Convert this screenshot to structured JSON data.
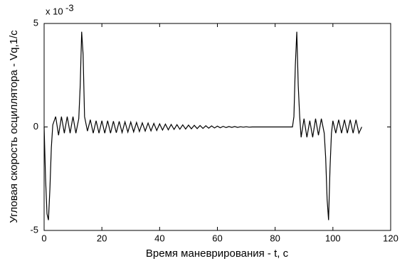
{
  "chart_data": {
    "type": "line",
    "ylabel": "Угловая скорость осциллятора - Vq,1/с",
    "xlabel": "Время маневрирования - t, с",
    "y_multiplier": "x 10",
    "y_exponent": "-3",
    "xlim": [
      0,
      120
    ],
    "xticks": [
      0,
      20,
      40,
      60,
      80,
      100,
      120
    ],
    "ylim": [
      -5,
      5
    ],
    "yticks": [
      -5,
      0,
      5
    ],
    "series": [
      {
        "color": "#000000",
        "x": [
          0,
          0.5,
          1,
          1.5,
          2,
          2.5,
          3,
          4,
          5,
          6,
          7,
          8,
          9,
          10,
          11,
          12,
          12.5,
          13,
          13.5,
          14,
          15,
          16,
          17,
          18,
          19,
          20,
          21,
          22,
          23,
          24,
          25,
          26,
          27,
          28,
          29,
          30,
          31,
          32,
          33,
          34,
          35,
          36,
          37,
          38,
          39,
          40,
          41,
          42,
          43,
          44,
          45,
          46,
          47,
          48,
          49,
          50,
          51,
          52,
          53,
          54,
          55,
          56,
          57,
          58,
          59,
          60,
          61,
          62,
          63,
          64,
          65,
          66,
          67,
          68,
          69,
          70,
          71,
          72,
          73,
          74,
          75,
          76,
          77,
          78,
          79,
          80,
          81,
          82,
          83,
          84,
          85,
          86,
          86.5,
          87,
          87.5,
          88,
          88.5,
          89,
          90,
          91,
          92,
          93,
          94,
          95,
          96,
          97,
          97.5,
          98,
          98.5,
          99,
          99.5,
          100,
          101,
          102,
          103,
          104,
          105,
          106,
          107,
          108,
          109,
          110
        ],
        "values": [
          0,
          -2.5,
          -4.2,
          -4.5,
          -3,
          -1,
          0.1,
          0.5,
          -0.4,
          0.5,
          -0.3,
          0.5,
          -0.3,
          0.5,
          -0.3,
          0.4,
          2,
          4.6,
          3.5,
          0.5,
          -0.2,
          0.35,
          -0.3,
          0.3,
          -0.3,
          0.3,
          -0.3,
          0.3,
          -0.3,
          0.28,
          -0.28,
          0.27,
          -0.27,
          0.25,
          -0.25,
          0.24,
          -0.24,
          0.22,
          -0.22,
          0.2,
          -0.2,
          0.19,
          -0.19,
          0.17,
          -0.17,
          0.15,
          -0.15,
          0.14,
          -0.14,
          0.12,
          -0.12,
          0.11,
          -0.11,
          0.1,
          -0.1,
          0.09,
          -0.09,
          0.08,
          -0.08,
          0.07,
          -0.07,
          0.06,
          -0.06,
          0.05,
          -0.05,
          0.04,
          -0.04,
          0.03,
          -0.03,
          0.02,
          -0.02,
          0.02,
          -0.02,
          0.01,
          -0.01,
          0.01,
          -0.01,
          0,
          0,
          0,
          0,
          0,
          0,
          0,
          0,
          0,
          0,
          0,
          0,
          0,
          0,
          0,
          0.5,
          3,
          4.6,
          2,
          0.5,
          -0.5,
          0.4,
          -0.5,
          0.3,
          -0.5,
          0.4,
          -0.4,
          0.4,
          -0.3,
          -1.5,
          -3.5,
          -4.5,
          -2,
          -0.3,
          0.3,
          -0.3,
          0.35,
          -0.3,
          0.35,
          -0.3,
          0.35,
          -0.3,
          0.35,
          -0.3,
          0
        ]
      }
    ]
  }
}
